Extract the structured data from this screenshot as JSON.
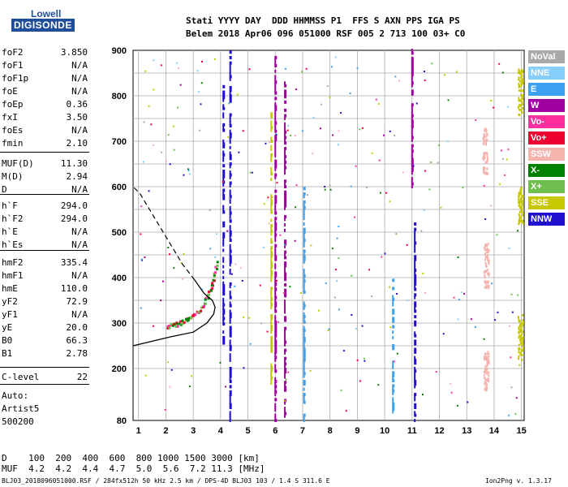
{
  "logo": {
    "line1": "Lowell",
    "line2": "DIGISONDE"
  },
  "header": {
    "row1": "Stati YYYY DAY  DDD HHMMSS P1  FFS S AXN PPS IGA PS",
    "row2": "Belem 2018 Apr06 096 051000 RSF 005 2 713 100 03+ C0"
  },
  "params": [
    {
      "label": "foF2",
      "value": "3.850"
    },
    {
      "label": "foF1",
      "value": "N/A"
    },
    {
      "label": "foF1p",
      "value": "N/A"
    },
    {
      "label": "foE",
      "value": "N/A"
    },
    {
      "label": "foEp",
      "value": "0.36"
    },
    {
      "label": "fxI",
      "value": "3.50"
    },
    {
      "label": "foEs",
      "value": "N/A"
    },
    {
      "label": "fmin",
      "value": "2.10"
    },
    {
      "label": "MUF(D)",
      "value": "11.30"
    },
    {
      "label": "M(D)",
      "value": "2.94"
    },
    {
      "label": "D",
      "value": "N/A"
    },
    {
      "label": "h`F",
      "value": "294.0"
    },
    {
      "label": "h`F2",
      "value": "294.0"
    },
    {
      "label": "h`E",
      "value": "N/A"
    },
    {
      "label": "h`Es",
      "value": "N/A"
    },
    {
      "label": "hmF2",
      "value": "335.4"
    },
    {
      "label": "hmF1",
      "value": "N/A"
    },
    {
      "label": "hmE",
      "value": "110.0"
    },
    {
      "label": "yF2",
      "value": "72.9"
    },
    {
      "label": "yF1",
      "value": "N/A"
    },
    {
      "label": "yE",
      "value": "20.0"
    },
    {
      "label": "B0",
      "value": "66.3"
    },
    {
      "label": "B1",
      "value": "2.78"
    },
    {
      "label": "C-level",
      "value": "22"
    }
  ],
  "auto": {
    "line1": "Auto:",
    "line2": "Artist5",
    "line3": "500200"
  },
  "legend": [
    {
      "label": "NoVal",
      "color": "#a9a9a9"
    },
    {
      "label": "NNE",
      "color": "#87cefa"
    },
    {
      "label": "E",
      "color": "#3aa0ef"
    },
    {
      "label": "W",
      "color": "#a0009f"
    },
    {
      "label": "Vo-",
      "color": "#ff2fa0"
    },
    {
      "label": "Vo+",
      "color": "#ef0030"
    },
    {
      "label": "SSW",
      "color": "#f5b3ae"
    },
    {
      "label": "X-",
      "color": "#008000"
    },
    {
      "label": "X+",
      "color": "#6fbf4f"
    },
    {
      "label": "SSE",
      "color": "#c8c800"
    },
    {
      "label": "NNW",
      "color": "#2010d0"
    }
  ],
  "bottom": {
    "d_row": "D    100  200  400  600  800 1000 1500 3000 [km]",
    "muf_row": "MUF  4.2  4.2  4.4  4.7  5.0  5.6  7.2 11.3 [MHz]",
    "footer_left": "BLJ03_2018096051000.RSF / 284fx512h 50 kHz 2.5 km / DPS-4D BLJ03 103 / 1.4 S 311.6 E",
    "footer_right": "Ion2Png v. 1.3.17"
  },
  "chart_data": {
    "type": "scatter",
    "xlim": [
      0.8,
      15.1
    ],
    "ylim": [
      80,
      900
    ],
    "x_ticks": [
      1,
      2,
      3,
      4,
      5,
      6,
      7,
      8,
      9,
      10,
      11,
      12,
      13,
      14,
      15
    ],
    "y_ticks": [
      80,
      200,
      300,
      400,
      500,
      600,
      700,
      800,
      900
    ],
    "x_tick_labels": [
      "1",
      "2",
      "3",
      "4",
      "5",
      "6",
      "7",
      "8",
      "9",
      "10",
      "11",
      "12",
      "13",
      "14",
      "15"
    ],
    "y_tick_labels": [
      "80",
      "200",
      "300",
      "400",
      "500",
      "600",
      "700",
      "800",
      "900"
    ],
    "grid": true,
    "legend_position": "right",
    "profile_solid": [
      [
        0.8,
        250
      ],
      [
        1.5,
        260
      ],
      [
        2.2,
        270
      ],
      [
        3.0,
        280
      ],
      [
        3.5,
        300
      ],
      [
        3.75,
        320
      ],
      [
        3.8,
        335
      ],
      [
        3.7,
        350
      ],
      [
        3.4,
        365
      ],
      [
        3.05,
        395
      ]
    ],
    "profile_dashed": [
      [
        3.05,
        395
      ],
      [
        2.6,
        430
      ],
      [
        2.2,
        470
      ],
      [
        1.8,
        510
      ],
      [
        1.4,
        550
      ],
      [
        1.05,
        585
      ],
      [
        0.8,
        600
      ]
    ],
    "o_trace": [
      [
        2.0,
        294
      ],
      [
        2.3,
        298
      ],
      [
        2.6,
        305
      ],
      [
        2.9,
        315
      ],
      [
        3.2,
        330
      ],
      [
        3.5,
        360
      ],
      [
        3.7,
        395
      ],
      [
        3.85,
        440
      ]
    ],
    "vertical_traces": [
      {
        "name": "W",
        "color": "#a0009f",
        "x": 6.0,
        "y_from": 80,
        "y_to": 900
      },
      {
        "name": "W",
        "color": "#a0009f",
        "x": 6.35,
        "y_from": 90,
        "y_to": 830
      },
      {
        "name": "NNW",
        "color": "#2010d0",
        "x": 4.35,
        "y_from": 80,
        "y_to": 900
      },
      {
        "name": "NNW",
        "color": "#2010d0",
        "x": 4.1,
        "y_from": 250,
        "y_to": 820
      },
      {
        "name": "E",
        "color": "#3aa0ef",
        "x": 7.05,
        "y_from": 80,
        "y_to": 600
      },
      {
        "name": "SSE",
        "color": "#c8c800",
        "x": 5.85,
        "y_from": 160,
        "y_to": 760
      },
      {
        "name": "E",
        "color": "#3aa0ef",
        "x": 10.3,
        "y_from": 100,
        "y_to": 400
      },
      {
        "name": "NNW",
        "color": "#2010d0",
        "x": 11.1,
        "y_from": 80,
        "y_to": 520
      },
      {
        "name": "W",
        "color": "#a0009f",
        "x": 11.0,
        "y_from": 600,
        "y_to": 900
      }
    ],
    "clusters": [
      {
        "name": "SSW",
        "color": "#f5b3ae",
        "x": 13.65,
        "y_from": 630,
        "y_to": 730
      },
      {
        "name": "SSW",
        "color": "#f5b3ae",
        "x": 13.7,
        "y_from": 380,
        "y_to": 480
      },
      {
        "name": "SSW",
        "color": "#f5b3ae",
        "x": 13.7,
        "y_from": 150,
        "y_to": 240
      },
      {
        "name": "SSE",
        "color": "#c8c800",
        "x": 14.95,
        "y_from": 220,
        "y_to": 320
      },
      {
        "name": "SSE",
        "color": "#c8c800",
        "x": 14.95,
        "y_from": 520,
        "y_to": 600
      },
      {
        "name": "SSE",
        "color": "#c8c800",
        "x": 14.95,
        "y_from": 760,
        "y_to": 860
      }
    ]
  }
}
